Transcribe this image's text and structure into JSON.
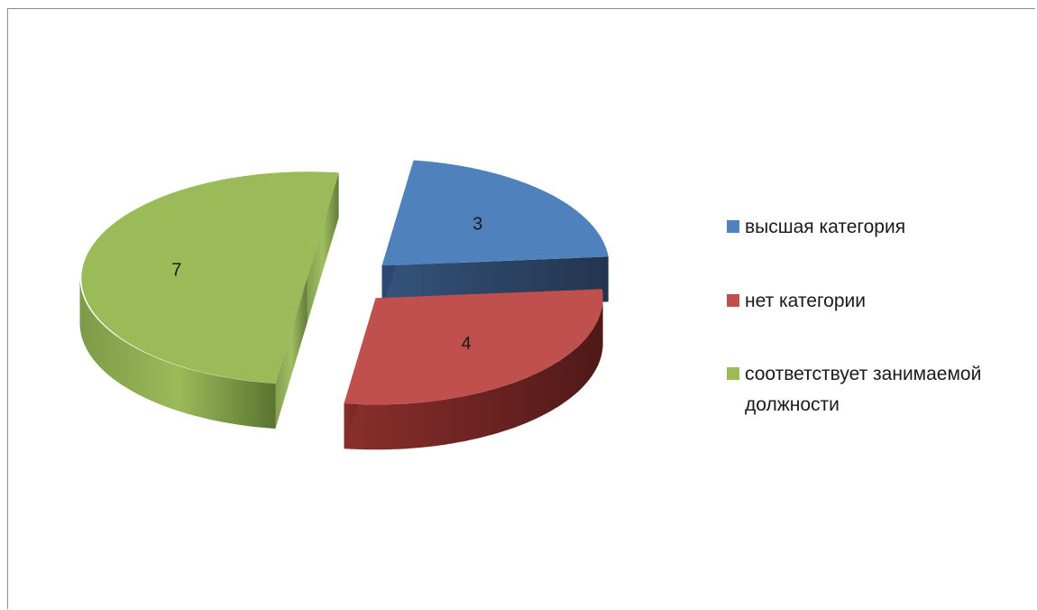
{
  "chart_data": {
    "type": "pie",
    "style": "3d-exploded",
    "categories": [
      "высшая категория",
      "нет категории",
      "соответствует занимаемой должности"
    ],
    "values": [
      3,
      4,
      7
    ],
    "data_labels": [
      "3",
      "4",
      "7"
    ],
    "colors": [
      "#4f81bd",
      "#c0504d",
      "#9bbb59"
    ],
    "legend": {
      "placement": "right",
      "entries": [
        {
          "lines": [
            "высшая категория"
          ],
          "color": "#4f81bd"
        },
        {
          "lines": [
            "нет категории"
          ],
          "color": "#c0504d"
        },
        {
          "lines": [
            "соответствует занимаемой",
            "должности"
          ],
          "color": "#9bbb59"
        }
      ]
    }
  }
}
